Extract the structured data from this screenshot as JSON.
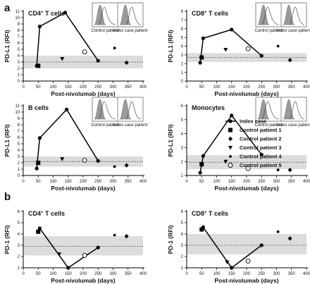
{
  "panel_labels": {
    "a": "a",
    "b": "b"
  },
  "legend": {
    "entries": [
      {
        "label": "Index case",
        "marker": "circle"
      },
      {
        "label": "Control patient 1",
        "marker": "square"
      },
      {
        "label": "Control patient 2",
        "marker": "diamond"
      },
      {
        "label": "Control patient 3",
        "marker": "triangle-down"
      },
      {
        "label": "Control patient 4",
        "marker": "small-circle"
      },
      {
        "label": "Control patient 5",
        "marker": "open-circle"
      }
    ]
  },
  "inset_labels": {
    "left": "Control patient",
    "right": "Index case patient"
  },
  "chart_data": [
    {
      "type": "scatter",
      "id": "cd4-pdl1",
      "title": "CD4",
      "title_sup": "+",
      "title_suffix": " T cells",
      "xlabel": "Post-nivolumab (days)",
      "ylabel": "PD-L1 (RFI)",
      "xlim": [
        0,
        400
      ],
      "xticks": [
        0,
        50,
        100,
        150,
        200,
        250,
        300,
        350,
        400
      ],
      "ylim": [
        0,
        11
      ],
      "yticks": [
        0,
        1,
        2,
        3,
        4,
        5,
        6,
        7,
        8,
        9,
        10,
        11
      ],
      "normal_band": [
        2.0,
        4.0
      ],
      "normal_mean": 3.0,
      "index_case": {
        "x": [
          45,
          55,
          140,
          250
        ],
        "y": [
          2.4,
          8.6,
          10.8,
          3.2
        ]
      },
      "controls": [
        {
          "name": "Control patient 1",
          "x": 50,
          "y": 2.4
        },
        {
          "name": "Control patient 2",
          "x": 345,
          "y": 2.9
        },
        {
          "name": "Control patient 3",
          "x": 130,
          "y": 3.5
        },
        {
          "name": "Control patient 4",
          "x": 305,
          "y": 5.2
        },
        {
          "name": "Control patient 5",
          "x": 205,
          "y": 4.6
        }
      ],
      "has_inset": true
    },
    {
      "type": "scatter",
      "id": "cd8-pdl1",
      "title": "CD8",
      "title_sup": "+",
      "title_suffix": " T cells",
      "xlabel": "Post-nivolumab (days)",
      "ylabel": "PD-L1 (RFI)",
      "xlim": [
        0,
        400
      ],
      "xticks": [
        0,
        50,
        100,
        150,
        200,
        250,
        300,
        350,
        400
      ],
      "ylim": [
        0,
        8
      ],
      "yticks": [
        0,
        1,
        2,
        3,
        4,
        5,
        6,
        7,
        8
      ],
      "normal_band": [
        2.2,
        3.2
      ],
      "normal_mean": 2.7,
      "index_case": {
        "x": [
          45,
          55,
          150,
          250
        ],
        "y": [
          2.1,
          4.9,
          5.9,
          2.9
        ]
      },
      "controls": [
        {
          "name": "Control patient 1",
          "x": 50,
          "y": 2.7
        },
        {
          "name": "Control patient 2",
          "x": 345,
          "y": 2.4
        },
        {
          "name": "Control patient 3",
          "x": 130,
          "y": 3.6
        },
        {
          "name": "Control patient 4",
          "x": 305,
          "y": 4.0
        },
        {
          "name": "Control patient 5",
          "x": 205,
          "y": 3.7
        }
      ],
      "has_inset": true
    },
    {
      "type": "scatter",
      "id": "bcells-pdl1",
      "title": "B cells",
      "title_sup": "",
      "title_suffix": "",
      "xlabel": "Post-nivolumab (days)",
      "ylabel": "PD-L1 (RFI)",
      "xlim": [
        0,
        400
      ],
      "xticks": [
        0,
        50,
        100,
        150,
        200,
        250,
        300,
        350,
        400
      ],
      "ylim": [
        0,
        11
      ],
      "yticks": [
        0,
        1,
        2,
        3,
        4,
        5,
        6,
        7,
        8,
        9,
        10,
        11
      ],
      "normal_band": [
        1.4,
        3.0
      ],
      "normal_mean": 2.2,
      "index_case": {
        "x": [
          45,
          55,
          145,
          250
        ],
        "y": [
          1.1,
          5.9,
          10.4,
          2.3
        ]
      },
      "controls": [
        {
          "name": "Control patient 1",
          "x": 50,
          "y": 2.0
        },
        {
          "name": "Control patient 2",
          "x": 345,
          "y": 1.6
        },
        {
          "name": "Control patient 3",
          "x": 130,
          "y": 2.6
        },
        {
          "name": "Control patient 4",
          "x": 305,
          "y": 1.4
        },
        {
          "name": "Control patient 5",
          "x": 205,
          "y": 2.4
        }
      ],
      "has_inset": true
    },
    {
      "type": "scatter",
      "id": "mono-pdl1",
      "title": "Monocytes",
      "title_sup": "",
      "title_suffix": "",
      "xlabel": "Post-nivolumab (days)",
      "ylabel": "PD-L1 (RFI)",
      "xlim": [
        0,
        400
      ],
      "xticks": [
        0,
        50,
        100,
        150,
        200,
        250,
        300,
        350,
        400
      ],
      "ylim": [
        1,
        6
      ],
      "yticks": [
        1,
        2,
        3,
        4,
        5,
        6
      ],
      "normal_band": [
        1.45,
        2.45
      ],
      "normal_mean": 1.95,
      "index_case": {
        "x": [
          45,
          55,
          150,
          250
        ],
        "y": [
          1.2,
          2.4,
          5.3,
          2.5
        ]
      },
      "controls": [
        {
          "name": "Control patient 1",
          "x": 50,
          "y": 1.8
        },
        {
          "name": "Control patient 2",
          "x": 345,
          "y": 1.4
        },
        {
          "name": "Control patient 3",
          "x": 130,
          "y": 2.0
        },
        {
          "name": "Control patient 4",
          "x": 305,
          "y": 1.4
        },
        {
          "name": "Control patient 5",
          "x": 205,
          "y": 1.5
        }
      ],
      "has_inset": true
    },
    {
      "type": "scatter",
      "id": "cd4-pd1",
      "title": "CD4",
      "title_sup": "+",
      "title_suffix": " T cells",
      "xlabel": "Post-nivolumab (days)",
      "ylabel": "PD-1 (RFI)",
      "xlim": [
        0,
        400
      ],
      "xticks": [
        0,
        50,
        100,
        150,
        200,
        250,
        300,
        350,
        400
      ],
      "ylim": [
        1,
        6
      ],
      "yticks": [
        1,
        2,
        3,
        4,
        5,
        6
      ],
      "normal_band": [
        2.1,
        3.8
      ],
      "normal_mean": 2.9,
      "index_case": {
        "x": [
          55,
          150,
          250
        ],
        "y": [
          4.5,
          1.0,
          2.8
        ]
      },
      "controls": [
        {
          "name": "Control patient 1",
          "x": 50,
          "y": 4.2
        },
        {
          "name": "Control patient 2",
          "x": 345,
          "y": 3.8
        },
        {
          "name": "Control patient 3",
          "x": 120,
          "y": 2.2
        },
        {
          "name": "Control patient4",
          "x": 305,
          "y": 3.9
        },
        {
          "name": "Control patient 5",
          "x": 205,
          "y": 2.1
        }
      ],
      "has_inset": false
    },
    {
      "type": "scatter",
      "id": "cd8-pd1",
      "title": "CD8",
      "title_sup": "+",
      "title_suffix": " T cells",
      "xlabel": "Post-nivolumab (days)",
      "ylabel": "PD-1 (RFI)",
      "xlim": [
        0,
        400
      ],
      "xticks": [
        0,
        50,
        100,
        150,
        200,
        250,
        300,
        350,
        400
      ],
      "ylim": [
        1,
        6
      ],
      "yticks": [
        1,
        2,
        3,
        4,
        5,
        6
      ],
      "normal_band": [
        2.2,
        4.0
      ],
      "normal_mean": 3.0,
      "index_case": {
        "x": [
          55,
          150,
          250
        ],
        "y": [
          4.6,
          1.0,
          3.0
        ]
      },
      "controls": [
        {
          "name": "Control patient 1",
          "x": 50,
          "y": 4.4
        },
        {
          "name": "Control patient 2",
          "x": 345,
          "y": 3.6
        },
        {
          "name": "Control patient 3",
          "x": 135,
          "y": 1.5
        },
        {
          "name": "Control patient 4",
          "x": 305,
          "y": 4.2
        },
        {
          "name": "Control patient 5",
          "x": 205,
          "y": 1.6
        }
      ],
      "has_inset": false
    }
  ]
}
